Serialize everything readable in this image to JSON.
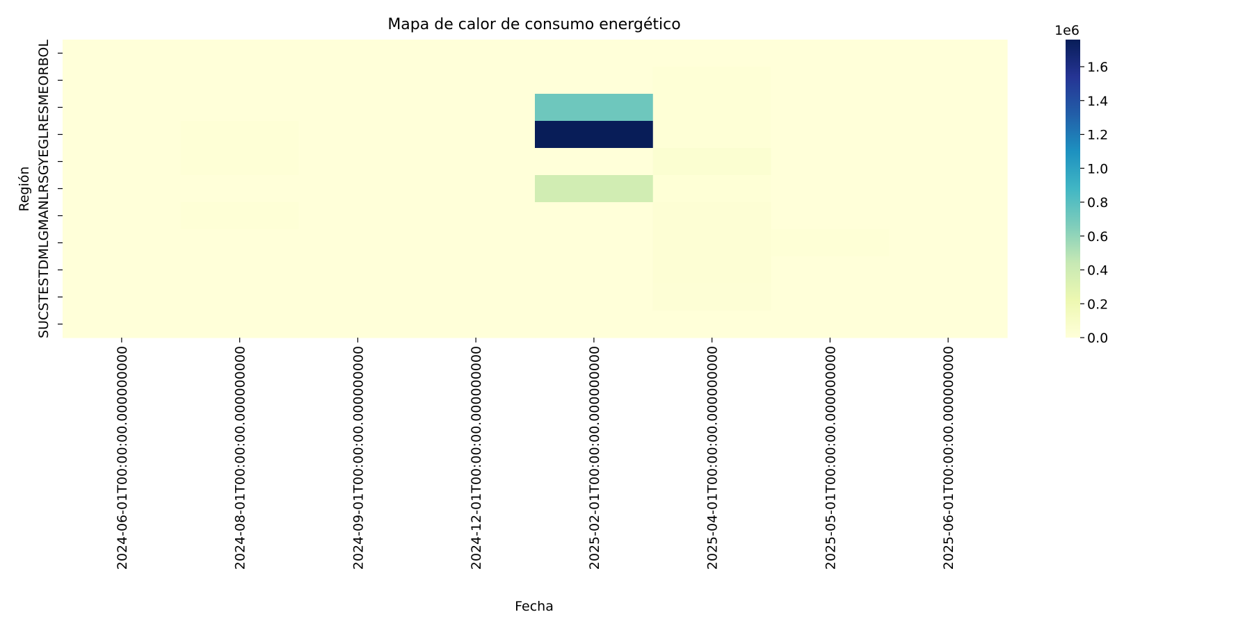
{
  "chart_data": {
    "type": "heatmap",
    "title": "Mapa de calor de consumo energético",
    "xlabel": "Fecha",
    "ylabel": "Región",
    "x_categories": [
      "2024-06-01T00:00:00.000000000",
      "2024-08-01T00:00:00.000000000",
      "2024-09-01T00:00:00.000000000",
      "2024-12-01T00:00:00.000000000",
      "2025-02-01T00:00:00.000000000",
      "2025-04-01T00:00:00.000000000",
      "2025-05-01T00:00:00.000000000",
      "2025-06-01T00:00:00.000000000"
    ],
    "y_categories": [
      "BOL",
      "",
      "EOR",
      "",
      "ESM",
      "",
      "GEL",
      "",
      "GYE",
      "",
      "LRS"
    ],
    "y_tick_labels_printed": "SUCSTESTDMLGMANLRSGYEGLRESMEORBOL",
    "values": [
      [
        0,
        0,
        0,
        0,
        0,
        0,
        0,
        0
      ],
      [
        0,
        0,
        0,
        0,
        0,
        15000,
        0,
        0
      ],
      [
        0,
        0,
        0,
        0,
        720000,
        15000,
        0,
        0
      ],
      [
        0,
        15000,
        0,
        0,
        1760000,
        15000,
        0,
        0
      ],
      [
        0,
        15000,
        0,
        0,
        0,
        45000,
        0,
        0
      ],
      [
        0,
        0,
        0,
        0,
        380000,
        15000,
        0,
        0
      ],
      [
        0,
        15000,
        0,
        0,
        0,
        25000,
        0,
        0
      ],
      [
        0,
        0,
        0,
        0,
        0,
        25000,
        15000,
        0
      ],
      [
        0,
        0,
        0,
        0,
        0,
        25000,
        0,
        0
      ],
      [
        0,
        0,
        0,
        0,
        0,
        20000,
        0,
        0
      ],
      [
        0,
        0,
        0,
        0,
        0,
        0,
        0,
        0
      ]
    ],
    "colormap": "YlGnBu",
    "colorbar": {
      "min": 0,
      "max": 1760000,
      "ticks": [
        0,
        0.2,
        0.4,
        0.6,
        0.8,
        1.0,
        1.2,
        1.4,
        1.6
      ],
      "tick_labels": [
        "0.0",
        "0.2",
        "0.4",
        "0.6",
        "0.8",
        "1.0",
        "1.2",
        "1.4",
        "1.6"
      ],
      "offset_label": "1e6"
    }
  }
}
